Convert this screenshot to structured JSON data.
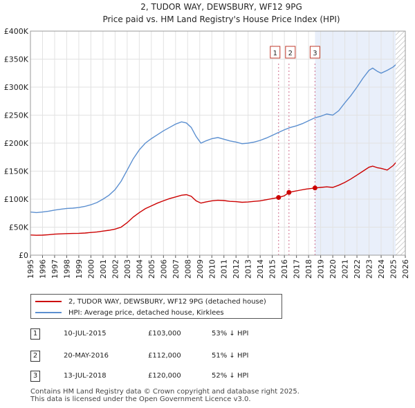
{
  "chart_data": {
    "type": "line",
    "title": "2, TUDOR WAY, DEWSBURY, WF12 9PG",
    "subtitle": "Price paid vs. HM Land Registry's House Price Index (HPI)",
    "xlim": [
      1995,
      2026
    ],
    "ylim": [
      0,
      400000
    ],
    "x_ticks": [
      1995,
      1996,
      1997,
      1998,
      1999,
      2000,
      2001,
      2002,
      2003,
      2004,
      2005,
      2006,
      2007,
      2008,
      2009,
      2010,
      2011,
      2012,
      2013,
      2014,
      2015,
      2016,
      2017,
      2018,
      2019,
      2020,
      2021,
      2022,
      2023,
      2024,
      2025,
      2026
    ],
    "y_ticks": [
      {
        "value": 0,
        "label": "£0"
      },
      {
        "value": 50000,
        "label": "£50K"
      },
      {
        "value": 100000,
        "label": "£100K"
      },
      {
        "value": 150000,
        "label": "£150K"
      },
      {
        "value": 200000,
        "label": "£200K"
      },
      {
        "value": 250000,
        "label": "£250K"
      },
      {
        "value": 300000,
        "label": "£300K"
      },
      {
        "value": 350000,
        "label": "£350K"
      },
      {
        "value": 400000,
        "label": "£400K"
      }
    ],
    "shaded_from": 2018.53,
    "hatched_from": 2025.2,
    "series": [
      {
        "name": "2, TUDOR WAY, DEWSBURY, WF12 9PG (detached house)",
        "color": "#cc0000",
        "x": [
          1995,
          1995.5,
          1996,
          1996.5,
          1997,
          1997.5,
          1998,
          1998.5,
          1999,
          1999.5,
          2000,
          2000.5,
          2001,
          2001.5,
          2002,
          2002.5,
          2003,
          2003.5,
          2004,
          2004.5,
          2005,
          2005.5,
          2006,
          2006.5,
          2007,
          2007.5,
          2007.9,
          2008.3,
          2008.7,
          2009.1,
          2009.5,
          2010,
          2010.5,
          2011,
          2011.5,
          2012,
          2012.5,
          2013,
          2013.5,
          2014,
          2014.5,
          2015,
          2015.52,
          2016,
          2016.38,
          2016.8,
          2017.3,
          2017.8,
          2018.2,
          2018.53,
          2019,
          2019.5,
          2020,
          2020.5,
          2021,
          2021.5,
          2022,
          2022.5,
          2023,
          2023.3,
          2023.7,
          2024,
          2024.5,
          2025,
          2025.2
        ],
        "y": [
          36000,
          35500,
          35800,
          36500,
          37500,
          38000,
          38500,
          38800,
          39000,
          39500,
          40500,
          41500,
          43000,
          44500,
          46500,
          50000,
          58000,
          68000,
          76000,
          83000,
          88000,
          93000,
          97000,
          101000,
          104000,
          107000,
          108000,
          105000,
          97000,
          93000,
          95000,
          97000,
          98000,
          97500,
          96000,
          95500,
          94500,
          95000,
          96000,
          97000,
          99000,
          101000,
          103000,
          106000,
          112000,
          114000,
          116000,
          118000,
          119000,
          120000,
          121000,
          122000,
          121000,
          125000,
          130000,
          136000,
          143000,
          150000,
          157000,
          159000,
          156000,
          155000,
          152000,
          160000,
          165000
        ]
      },
      {
        "name": "HPI: Average price, detached house, Kirklees",
        "color": "#5b8fd0",
        "x": [
          1995,
          1995.5,
          1996,
          1996.5,
          1997,
          1997.5,
          1998,
          1998.5,
          1999,
          1999.5,
          2000,
          2000.5,
          2001,
          2001.5,
          2002,
          2002.5,
          2003,
          2003.5,
          2004,
          2004.5,
          2005,
          2005.5,
          2006,
          2006.5,
          2007,
          2007.5,
          2007.9,
          2008.3,
          2008.7,
          2009.1,
          2009.5,
          2010,
          2010.5,
          2011,
          2011.5,
          2012,
          2012.5,
          2013,
          2013.5,
          2014,
          2014.5,
          2015,
          2015.5,
          2016,
          2016.5,
          2017,
          2017.5,
          2018,
          2018.5,
          2019,
          2019.5,
          2020,
          2020.5,
          2021,
          2021.5,
          2022,
          2022.5,
          2023,
          2023.3,
          2023.7,
          2024,
          2024.5,
          2025,
          2025.2
        ],
        "y": [
          77000,
          76000,
          77000,
          78500,
          80500,
          82000,
          83500,
          84000,
          85000,
          87000,
          90000,
          94000,
          100000,
          107000,
          117000,
          132000,
          152000,
          172000,
          188000,
          200000,
          208000,
          215000,
          222000,
          228000,
          234000,
          238000,
          236000,
          228000,
          212000,
          200000,
          204000,
          208000,
          210000,
          207000,
          204000,
          202000,
          199000,
          200000,
          202000,
          205000,
          209000,
          214000,
          219000,
          224000,
          228000,
          231000,
          235000,
          240000,
          245000,
          248000,
          252000,
          250000,
          258000,
          272000,
          285000,
          300000,
          316000,
          330000,
          334000,
          328000,
          325000,
          330000,
          336000,
          340000
        ]
      }
    ],
    "sales": [
      {
        "id": "1",
        "x": 2015.52,
        "price": 103000,
        "date": "10-JUL-2015",
        "price_label": "£103,000",
        "hpi": "53% ↓ HPI"
      },
      {
        "id": "2",
        "x": 2016.38,
        "price": 112000,
        "date": "20-MAY-2016",
        "price_label": "£112,000",
        "hpi": "51% ↓ HPI"
      },
      {
        "id": "3",
        "x": 2018.53,
        "price": 120000,
        "date": "13-JUL-2018",
        "price_label": "£120,000",
        "hpi": "52% ↓ HPI"
      }
    ]
  },
  "legend": {
    "property_label": "2, TUDOR WAY, DEWSBURY, WF12 9PG (detached house)",
    "hpi_label": "HPI: Average price, detached house, Kirklees",
    "property_color": "#cc0000",
    "hpi_color": "#5b8fd0"
  },
  "footer": {
    "line1": "Contains HM Land Registry data © Crown copyright and database right 2025.",
    "line2": "This data is licensed under the Open Government Licence v3.0."
  }
}
